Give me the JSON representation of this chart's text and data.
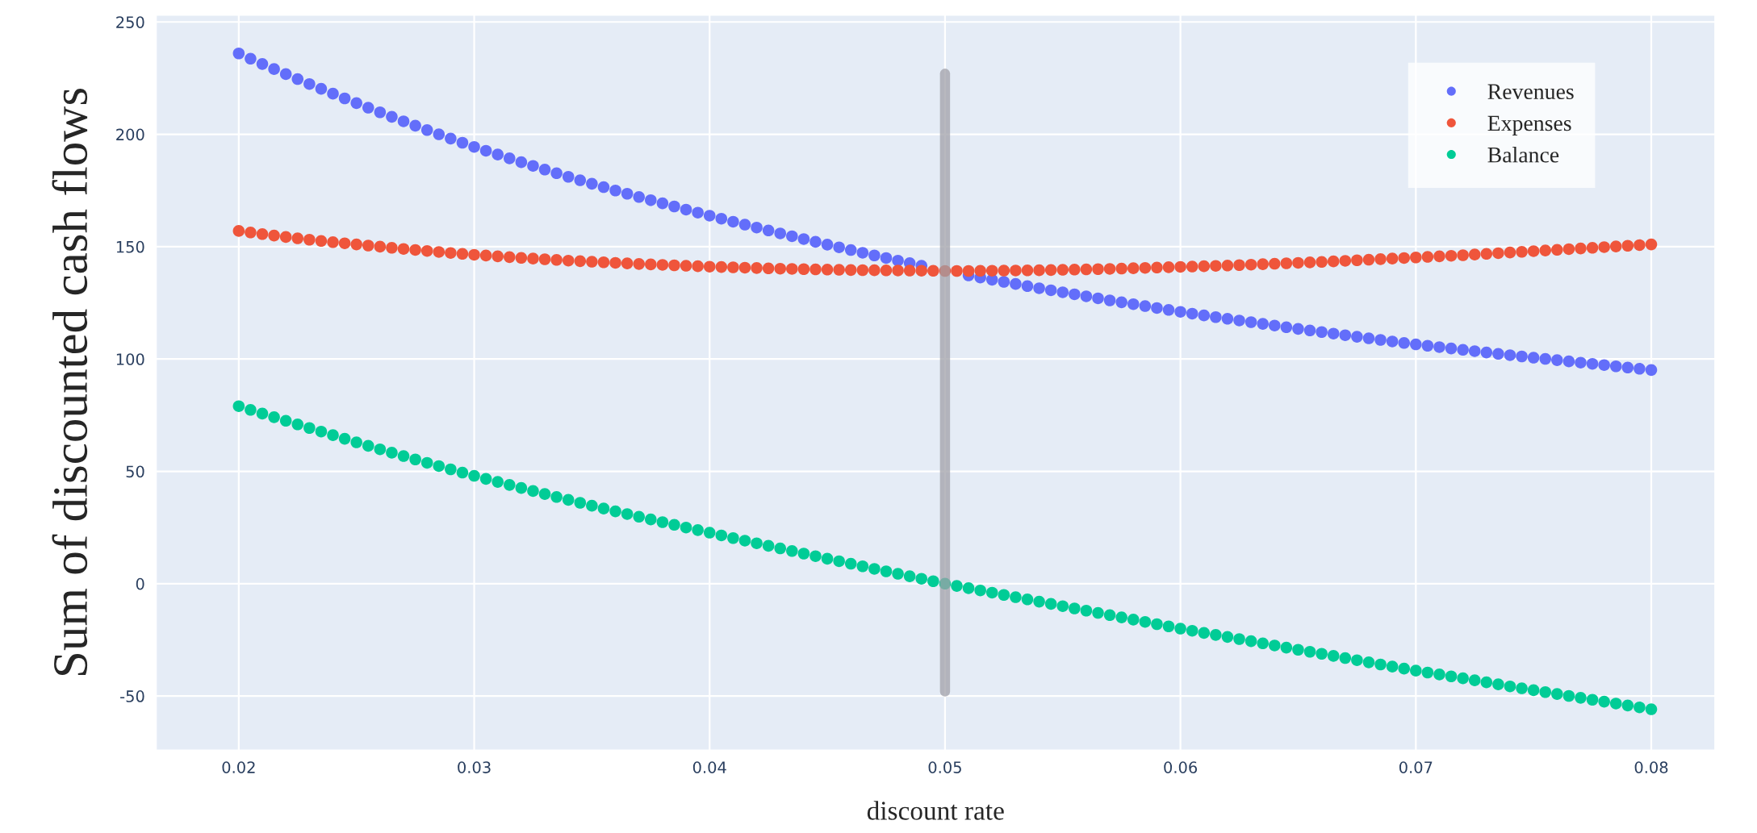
{
  "chart_data": {
    "type": "scatter",
    "xlabel": "discount rate",
    "ylabel": "Sum of discounted cash flows",
    "x": [
      0.02,
      0.0205,
      0.021,
      0.0215,
      0.022,
      0.0225,
      0.023,
      0.0235,
      0.024,
      0.0245,
      0.025,
      0.0255,
      0.026,
      0.0265,
      0.027,
      0.0275,
      0.028,
      0.0285,
      0.029,
      0.0295,
      0.03,
      0.0305,
      0.031,
      0.0315,
      0.032,
      0.0325,
      0.033,
      0.0335,
      0.034,
      0.0345,
      0.035,
      0.0355,
      0.036,
      0.0365,
      0.037,
      0.0375,
      0.038,
      0.0385,
      0.039,
      0.0395,
      0.04,
      0.0405,
      0.041,
      0.0415,
      0.042,
      0.0425,
      0.043,
      0.0435,
      0.044,
      0.0445,
      0.045,
      0.0455,
      0.046,
      0.0465,
      0.047,
      0.0475,
      0.048,
      0.0485,
      0.049,
      0.0495,
      0.05,
      0.0505,
      0.051,
      0.0515,
      0.052,
      0.0525,
      0.053,
      0.0535,
      0.054,
      0.0545,
      0.055,
      0.0555,
      0.056,
      0.0565,
      0.057,
      0.0575,
      0.058,
      0.0585,
      0.059,
      0.0595,
      0.06,
      0.0605,
      0.061,
      0.0615,
      0.062,
      0.0625,
      0.063,
      0.0635,
      0.064,
      0.0645,
      0.065,
      0.0655,
      0.066,
      0.0665,
      0.067,
      0.0675,
      0.068,
      0.0685,
      0.069,
      0.0695,
      0.07,
      0.0705,
      0.071,
      0.0715,
      0.072,
      0.0725,
      0.073,
      0.0735,
      0.074,
      0.0745,
      0.075,
      0.0755,
      0.076,
      0.0765,
      0.077,
      0.0775,
      0.078,
      0.0785,
      0.079,
      0.0795,
      0.08
    ],
    "series": [
      {
        "name": "Revenues",
        "color": "#636efa",
        "values": [
          236,
          233.65,
          231.3,
          229.05,
          226.8,
          224.6,
          222.4,
          220.25,
          218.1,
          216,
          213.9,
          211.85,
          209.8,
          207.8,
          205.8,
          203.85,
          201.9,
          200,
          198.1,
          196.25,
          194.4,
          192.7,
          191,
          189.3,
          187.6,
          185.95,
          184.3,
          182.7,
          181.1,
          179.55,
          178,
          176.5,
          175,
          173.55,
          172.1,
          170.7,
          169.3,
          167.9,
          166.5,
          165.15,
          163.8,
          162.45,
          161.1,
          159.8,
          158.5,
          157.2,
          155.9,
          154.65,
          153.4,
          152.15,
          150.9,
          149.7,
          148.5,
          147.3,
          146.1,
          144.95,
          143.8,
          142.65,
          141.5,
          null,
          null,
          null,
          137.2,
          136.25,
          135.3,
          134.35,
          133.4,
          132.45,
          131.5,
          130.6,
          129.7,
          128.8,
          127.9,
          127,
          126.1,
          125.25,
          124.4,
          123.55,
          122.7,
          121.85,
          121,
          120.2,
          119.4,
          118.65,
          117.9,
          117.15,
          116.4,
          115.65,
          114.9,
          114.15,
          113.4,
          112.7,
          112,
          111.3,
          110.6,
          109.9,
          109.2,
          108.5,
          107.8,
          107.15,
          106.5,
          105.9,
          105.3,
          104.7,
          104.1,
          103.5,
          102.9,
          102.3,
          101.7,
          101.15,
          100.6,
          100.05,
          99.5,
          98.95,
          98.4,
          97.85,
          97.3,
          96.75,
          96.2,
          95.65,
          95.1
        ]
      },
      {
        "name": "Expenses",
        "color": "#ef553b",
        "values": [
          157,
          156.3,
          155.6,
          154.95,
          154.3,
          153.7,
          153.1,
          152.55,
          152,
          151.5,
          151,
          150.5,
          150,
          149.5,
          149,
          148.55,
          148.1,
          147.65,
          147.2,
          146.8,
          146.4,
          146.05,
          145.7,
          145.35,
          145,
          144.7,
          144.4,
          144.1,
          143.8,
          143.55,
          143.3,
          143.05,
          142.8,
          142.55,
          142.3,
          142.1,
          141.9,
          141.7,
          141.5,
          141.3,
          141.1,
          140.95,
          140.8,
          140.65,
          140.5,
          140.35,
          140.2,
          140.1,
          140,
          139.9,
          139.8,
          139.7,
          139.6,
          139.55,
          139.5,
          139.45,
          139.4,
          139.35,
          139.3,
          139.25,
          139.2,
          139.2,
          139.2,
          139.25,
          139.3,
          139.35,
          139.4,
          139.45,
          139.5,
          139.6,
          139.7,
          139.8,
          139.9,
          140,
          140.1,
          140.25,
          140.4,
          140.55,
          140.7,
          140.85,
          141,
          141.15,
          141.3,
          141.45,
          141.6,
          141.8,
          142,
          142.2,
          142.4,
          142.6,
          142.8,
          143,
          143.2,
          143.45,
          143.7,
          143.95,
          144.2,
          144.45,
          144.7,
          144.95,
          145.2,
          145.45,
          145.7,
          145.95,
          146.2,
          146.5,
          146.8,
          147.1,
          147.4,
          147.7,
          148,
          148.3,
          148.6,
          148.9,
          149.2,
          149.5,
          149.8,
          150.1,
          150.4,
          150.7,
          151
        ]
      },
      {
        "name": "Balance",
        "color": "#00cc96",
        "values": [
          79,
          77.35,
          75.7,
          74.1,
          72.5,
          70.9,
          69.3,
          67.7,
          66.1,
          64.5,
          62.9,
          61.35,
          59.8,
          58.3,
          56.8,
          55.3,
          53.8,
          52.35,
          50.9,
          49.45,
          48,
          46.65,
          45.3,
          43.95,
          42.6,
          41.25,
          39.9,
          38.6,
          37.3,
          36,
          34.7,
          33.45,
          32.2,
          31,
          29.8,
          28.6,
          27.4,
          26.2,
          25,
          23.85,
          22.7,
          21.5,
          20.3,
          19.15,
          18,
          16.85,
          15.7,
          14.55,
          13.4,
          12.25,
          11.1,
          10,
          8.9,
          7.75,
          6.6,
          5.5,
          4.4,
          3.3,
          2.2,
          1.1,
          0,
          -1,
          -2,
          -3,
          -4,
          -5,
          -6,
          -7,
          -8,
          -9,
          -10,
          -11,
          -12,
          -13,
          -14,
          -15,
          -16,
          -17,
          -18,
          -19,
          -20,
          -20.95,
          -21.9,
          -22.8,
          -23.7,
          -24.65,
          -25.6,
          -26.55,
          -27.5,
          -28.45,
          -29.4,
          -30.3,
          -31.2,
          -32.15,
          -33.1,
          -34.05,
          -35,
          -35.95,
          -36.9,
          -37.8,
          -38.7,
          -39.55,
          -40.4,
          -41.25,
          -42.1,
          -43,
          -43.9,
          -44.8,
          -45.7,
          -46.55,
          -47.4,
          -48.25,
          -49.1,
          -49.95,
          -50.8,
          -51.65,
          -52.5,
          -53.35,
          -54.2,
          -55.05,
          -55.9
        ]
      },
      {
        "type": "line",
        "marker": "none",
        "color": "#a0a0a8",
        "x": [
          0.05,
          0.05
        ],
        "values": [
          -48,
          227
        ]
      }
    ],
    "xlim": [
      0.0165,
      0.0827
    ],
    "ylim": [
      -74,
      253
    ],
    "xticks": [
      0.02,
      0.03,
      0.04,
      0.05,
      0.06,
      0.07,
      0.08
    ],
    "yticks": [
      -50,
      0,
      50,
      100,
      150,
      200,
      250
    ],
    "grid": true,
    "legend": "top right",
    "marker": "circle"
  }
}
